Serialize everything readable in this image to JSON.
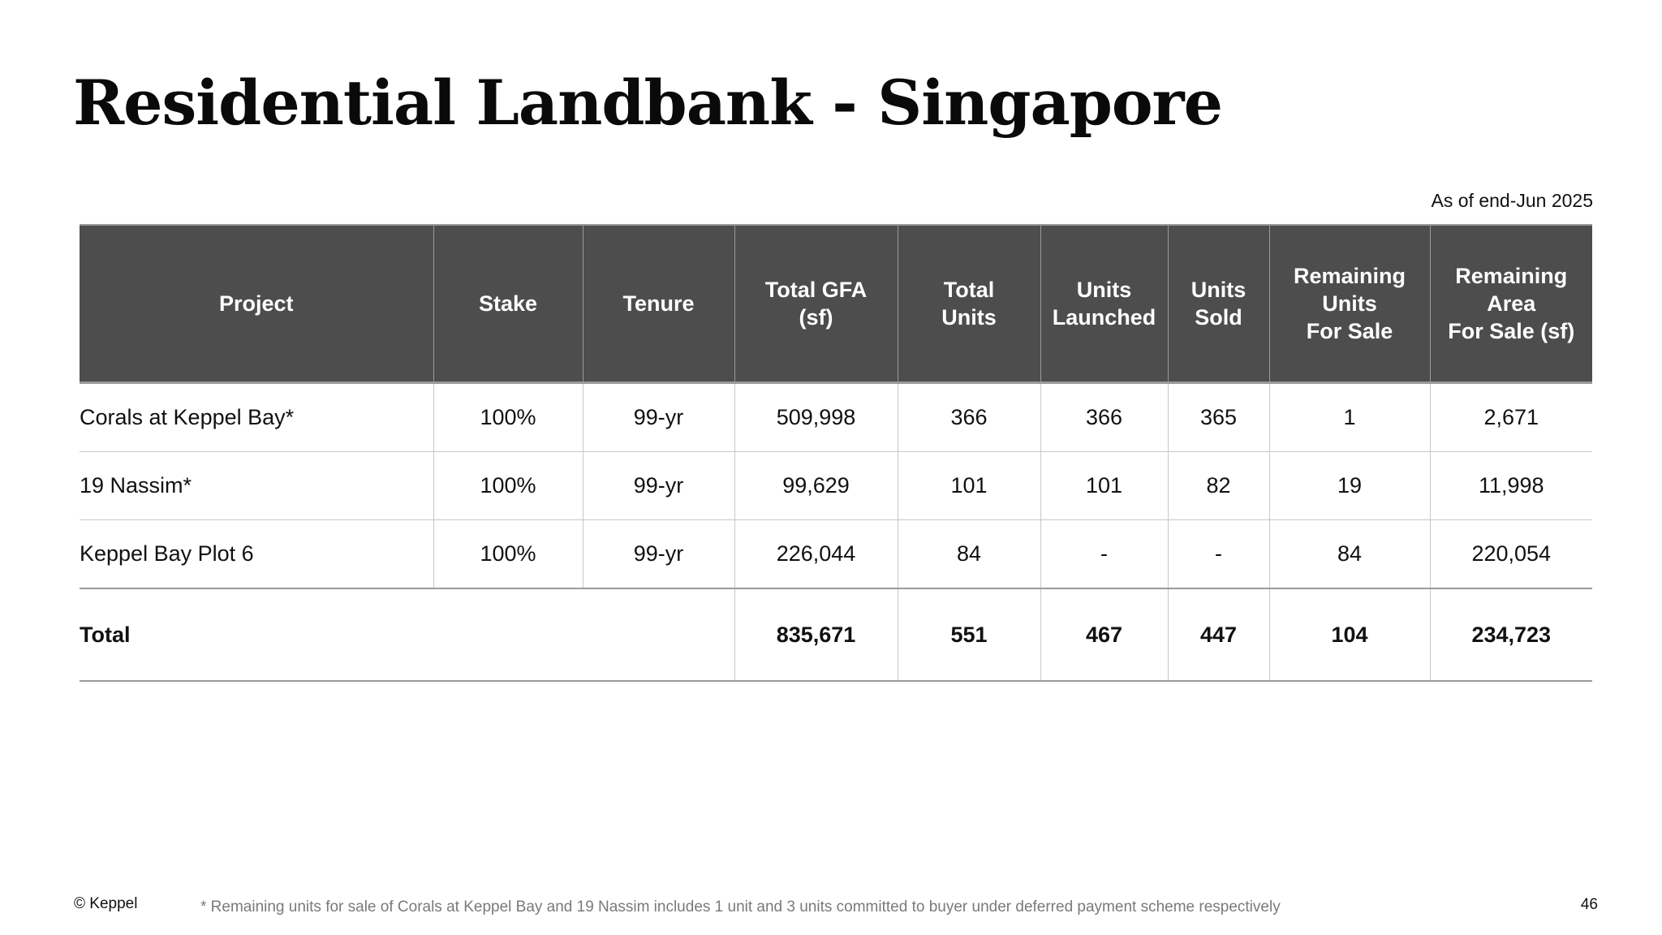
{
  "title": "Residential Landbank - Singapore",
  "as_of": "As of end-Jun 2025",
  "table": {
    "headers": [
      "Project",
      "Stake",
      "Tenure",
      "Total GFA\n(sf)",
      "Total\nUnits",
      "Units\nLaunched",
      "Units\nSold",
      "Remaining\nUnits\nFor Sale",
      "Remaining\nArea\nFor Sale (sf)"
    ],
    "rows": [
      [
        "Corals at Keppel Bay*",
        "100%",
        "99-yr",
        "509,998",
        "366",
        "366",
        "365",
        "1",
        "2,671"
      ],
      [
        "19 Nassim*",
        "100%",
        "99-yr",
        "99,629",
        "101",
        "101",
        "82",
        "19",
        "11,998"
      ],
      [
        "Keppel Bay Plot 6",
        "100%",
        "99-yr",
        "226,044",
        "84",
        "-",
        "-",
        "84",
        "220,054"
      ]
    ],
    "total": {
      "label": "Total",
      "values": [
        "835,671",
        "551",
        "467",
        "447",
        "104",
        "234,723"
      ]
    }
  },
  "footer": {
    "copyright": "© Keppel",
    "footnote": "* Remaining units for sale of Corals at Keppel Bay and 19 Nassim includes 1 unit and 3 units committed to buyer under deferred payment scheme respectively",
    "page_number": "46"
  },
  "colors": {
    "header_bg": "#4d4d4d",
    "header_text": "#ffffff",
    "footnote_text": "#7a7a7a"
  }
}
